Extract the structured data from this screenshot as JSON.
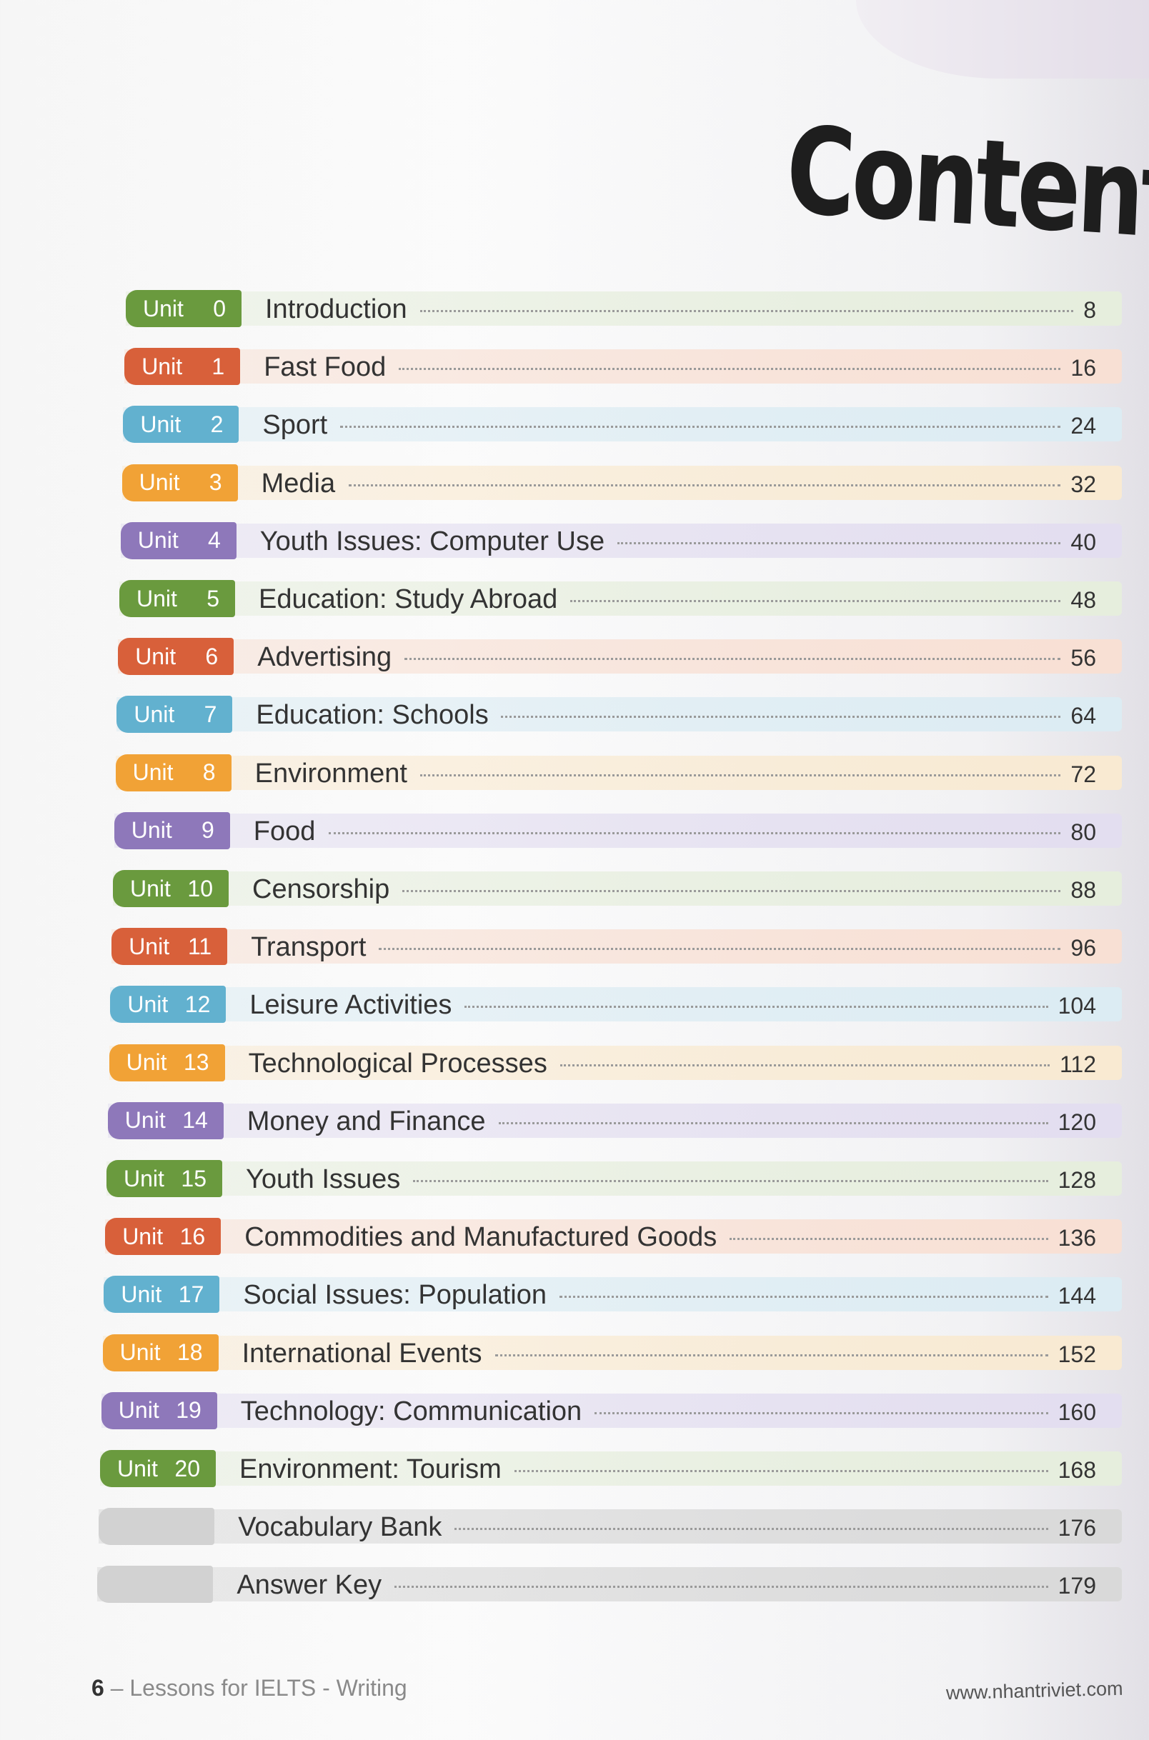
{
  "heading": "Contents",
  "colors": {
    "green": "#6a9a3e",
    "red": "#d8603a",
    "blue": "#62b1cf",
    "orange": "#f1a236",
    "purple": "#8e78ba",
    "gray": "#d2d2d2"
  },
  "tints": {
    "green": "#e6eedd",
    "red": "#f8e0d4",
    "blue": "#dcecf3",
    "orange": "#f9ead2",
    "purple": "#e3def0",
    "gray": "#d9d9d9"
  },
  "entries": [
    {
      "unit": "Unit",
      "num": "0",
      "title": "Introduction",
      "page": "8",
      "color": "green"
    },
    {
      "unit": "Unit",
      "num": "1",
      "title": "Fast Food",
      "page": "16",
      "color": "red"
    },
    {
      "unit": "Unit",
      "num": "2",
      "title": "Sport",
      "page": "24",
      "color": "blue"
    },
    {
      "unit": "Unit",
      "num": "3",
      "title": "Media",
      "page": "32",
      "color": "orange"
    },
    {
      "unit": "Unit",
      "num": "4",
      "title": "Youth Issues: Computer Use",
      "page": "40",
      "color": "purple"
    },
    {
      "unit": "Unit",
      "num": "5",
      "title": "Education: Study Abroad",
      "page": "48",
      "color": "green"
    },
    {
      "unit": "Unit",
      "num": "6",
      "title": "Advertising",
      "page": "56",
      "color": "red"
    },
    {
      "unit": "Unit",
      "num": "7",
      "title": "Education: Schools",
      "page": "64",
      "color": "blue"
    },
    {
      "unit": "Unit",
      "num": "8",
      "title": "Environment",
      "page": "72",
      "color": "orange"
    },
    {
      "unit": "Unit",
      "num": "9",
      "title": "Food",
      "page": "80",
      "color": "purple"
    },
    {
      "unit": "Unit",
      "num": "10",
      "title": "Censorship",
      "page": "88",
      "color": "green"
    },
    {
      "unit": "Unit",
      "num": "11",
      "title": "Transport",
      "page": "96",
      "color": "red"
    },
    {
      "unit": "Unit",
      "num": "12",
      "title": "Leisure Activities",
      "page": "104",
      "color": "blue"
    },
    {
      "unit": "Unit",
      "num": "13",
      "title": "Technological Processes",
      "page": "112",
      "color": "orange"
    },
    {
      "unit": "Unit",
      "num": "14",
      "title": "Money and Finance",
      "page": "120",
      "color": "purple"
    },
    {
      "unit": "Unit",
      "num": "15",
      "title": "Youth Issues",
      "page": "128",
      "color": "green"
    },
    {
      "unit": "Unit",
      "num": "16",
      "title": "Commodities and Manufactured Goods",
      "page": "136",
      "color": "red"
    },
    {
      "unit": "Unit",
      "num": "17",
      "title": "Social Issues: Population",
      "page": "144",
      "color": "blue"
    },
    {
      "unit": "Unit",
      "num": "18",
      "title": "International Events",
      "page": "152",
      "color": "orange"
    },
    {
      "unit": "Unit",
      "num": "19",
      "title": "Technology: Communication",
      "page": "160",
      "color": "purple"
    },
    {
      "unit": "Unit",
      "num": "20",
      "title": "Environment: Tourism",
      "page": "168",
      "color": "green"
    },
    {
      "unit": "",
      "num": "",
      "title": "Vocabulary Bank",
      "page": "176",
      "color": "gray"
    },
    {
      "unit": "",
      "num": "",
      "title": "Answer Key",
      "page": "179",
      "color": "gray"
    }
  ],
  "footer": {
    "page_number": "6",
    "book_title": " – Lessons for IELTS - Writing",
    "website": "www.nhantriviet.com"
  }
}
